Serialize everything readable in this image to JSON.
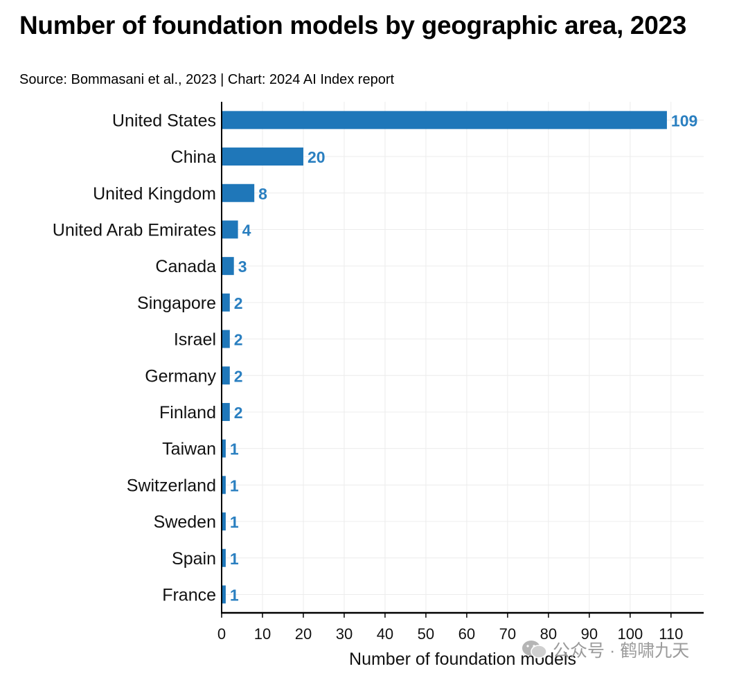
{
  "chart_data": {
    "type": "bar",
    "orientation": "horizontal",
    "title": "Number of foundation models by geographic area, 2023",
    "subtitle": "Source: Bommasani et al., 2023 | Chart: 2024 AI Index report",
    "categories": [
      "United States",
      "China",
      "United Kingdom",
      "United Arab Emirates",
      "Canada",
      "Singapore",
      "Israel",
      "Germany",
      "Finland",
      "Taiwan",
      "Switzerland",
      "Sweden",
      "Spain",
      "France"
    ],
    "values": [
      109,
      20,
      8,
      4,
      3,
      2,
      2,
      2,
      2,
      1,
      1,
      1,
      1,
      1
    ],
    "xlabel": "Number of foundation models",
    "ylabel": "",
    "xlim": [
      0,
      118
    ],
    "xticks": [
      0,
      10,
      20,
      30,
      40,
      50,
      60,
      70,
      80,
      90,
      100,
      110
    ],
    "grid": true,
    "bar_color": "#1f77b9",
    "label_color": "#2a7fc0"
  },
  "watermark": {
    "text": "公众号 · 鹤啸九天",
    "icon": "wechat-icon"
  }
}
